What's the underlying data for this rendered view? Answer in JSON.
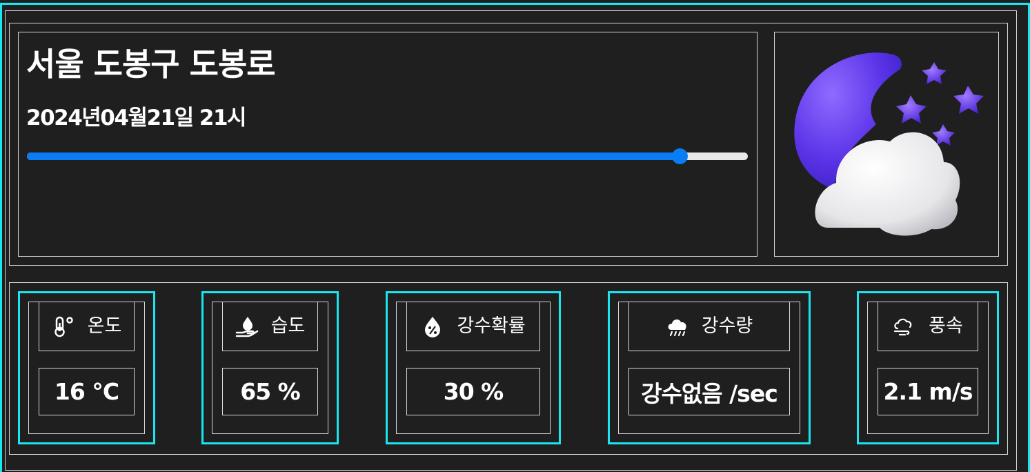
{
  "location": "서울 도봉구 도봉로",
  "datetime": "2024년04월21일 21시",
  "time_slider": {
    "progress_percent": 90.5
  },
  "weather_icon": "moon-cloud-stars-icon",
  "colors": {
    "accent": "#19e6f0",
    "slider": "#0a7cf4",
    "background": "#1f1f1f",
    "moon": "#6a3ff0"
  },
  "metrics": [
    {
      "icon": "thermometer-icon",
      "label": "온도",
      "value": "16 °C"
    },
    {
      "icon": "humidity-hand-drop-icon",
      "label": "습도",
      "value": "65 %"
    },
    {
      "icon": "rain-probability-drop-icon",
      "label": "강수확률",
      "value": "30 %"
    },
    {
      "icon": "rain-cloud-icon",
      "label": "강수량",
      "value": "강수없음 /sec"
    },
    {
      "icon": "wind-icon",
      "label": "풍속",
      "value": "2.1 m/s"
    }
  ]
}
